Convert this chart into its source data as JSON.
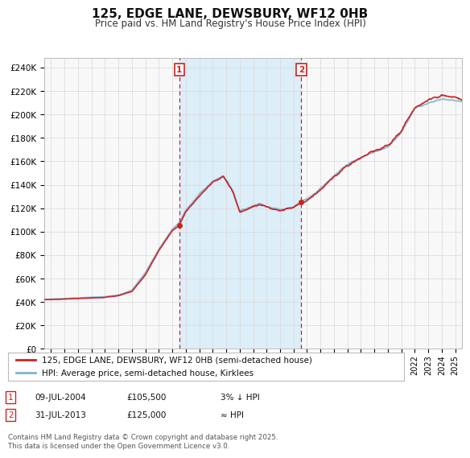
{
  "title": "125, EDGE LANE, DEWSBURY, WF12 0HB",
  "subtitle": "Price paid vs. HM Land Registry's House Price Index (HPI)",
  "ylabel_ticks": [
    "£0",
    "£20K",
    "£40K",
    "£60K",
    "£80K",
    "£100K",
    "£120K",
    "£140K",
    "£160K",
    "£180K",
    "£200K",
    "£220K",
    "£240K"
  ],
  "ytick_values": [
    0,
    20000,
    40000,
    60000,
    80000,
    100000,
    120000,
    140000,
    160000,
    180000,
    200000,
    220000,
    240000
  ],
  "ylim": [
    0,
    248000
  ],
  "xlim_start": 1994.5,
  "xlim_end": 2025.5,
  "purchase1_x": 2004.53,
  "purchase1_y": 105500,
  "purchase2_x": 2013.58,
  "purchase2_y": 125000,
  "purchase1_date": "09-JUL-2004",
  "purchase1_price": "£105,500",
  "purchase1_hpi": "3% ↓ HPI",
  "purchase2_date": "31-JUL-2013",
  "purchase2_price": "£125,000",
  "purchase2_hpi": "≈ HPI",
  "legend_line1": "125, EDGE LANE, DEWSBURY, WF12 0HB (semi-detached house)",
  "legend_line2": "HPI: Average price, semi-detached house, Kirklees",
  "footer": "Contains HM Land Registry data © Crown copyright and database right 2025.\nThis data is licensed under the Open Government Licence v3.0.",
  "hpi_color": "#7fb3d3",
  "price_color": "#cc2222",
  "shading_color": "#dceef8",
  "background_color": "#ffffff",
  "plot_bg_color": "#f8f8f8"
}
